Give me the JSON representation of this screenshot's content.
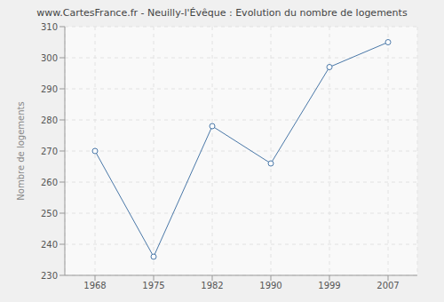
{
  "chart_data": {
    "type": "line",
    "title": "www.CartesFrance.fr - Neuilly-l'Évêque : Evolution du nombre de logements",
    "y_label": "Nombre de logements",
    "categories": [
      "1968",
      "1975",
      "1982",
      "1990",
      "1999",
      "2007"
    ],
    "values": [
      270,
      236,
      278,
      266,
      297,
      305
    ],
    "color": "#4a78a8",
    "marker": "circle",
    "ylim": [
      230,
      310
    ],
    "yticks": [
      230,
      240,
      250,
      260,
      270,
      280,
      290,
      300,
      310
    ],
    "grid": true
  }
}
